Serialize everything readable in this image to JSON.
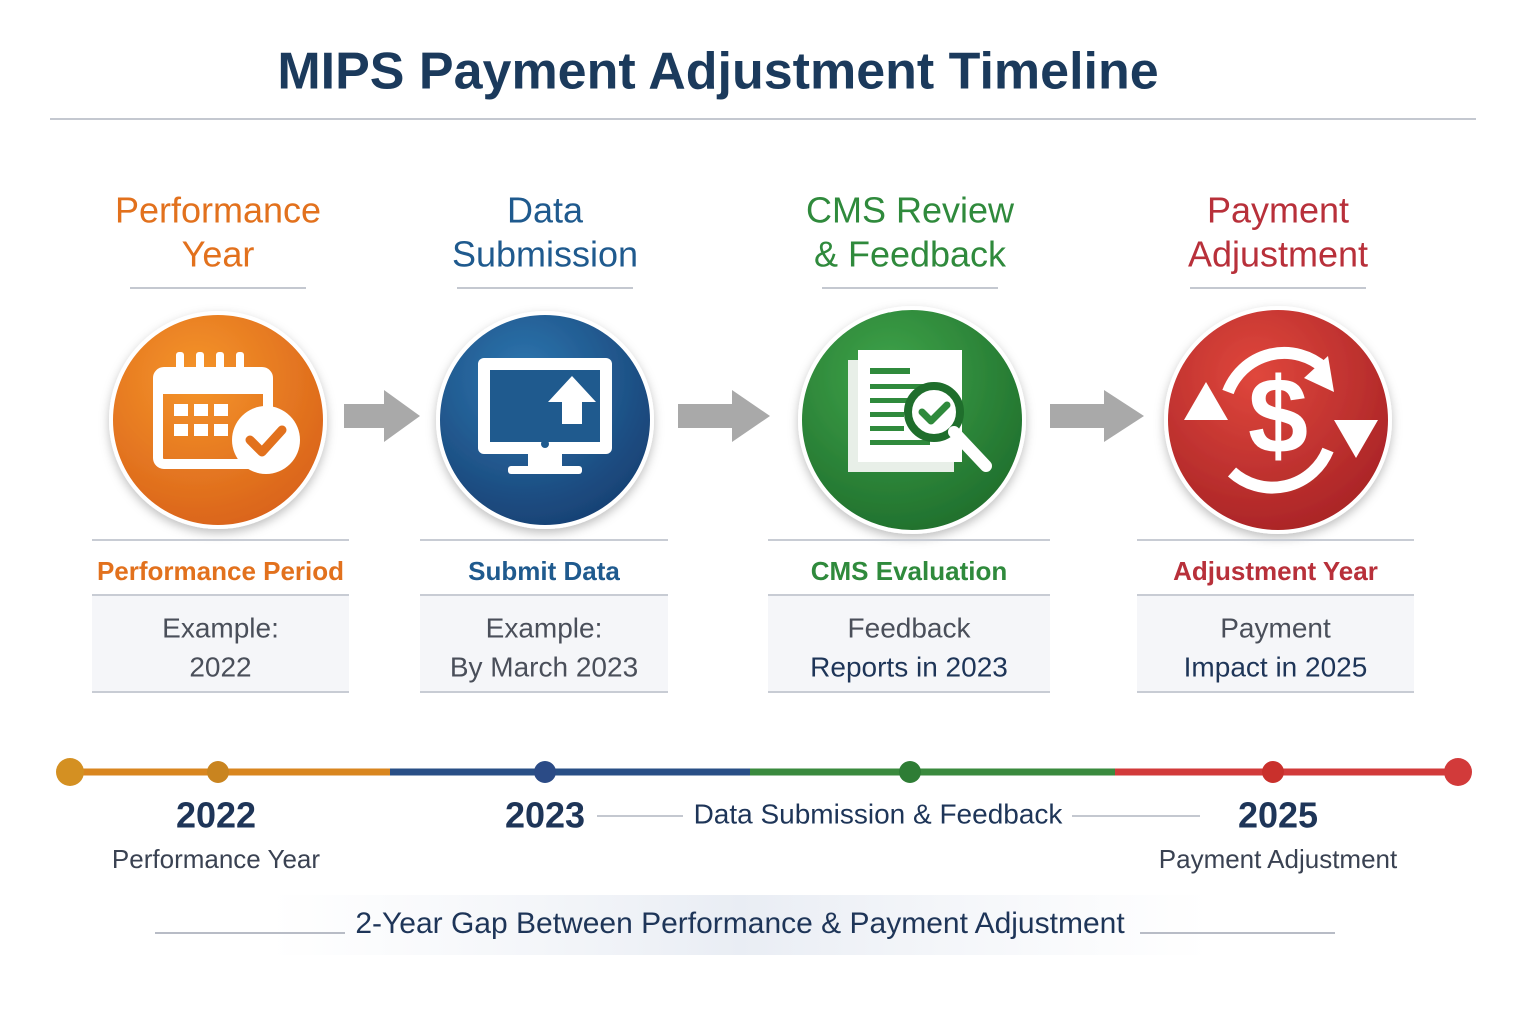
{
  "title": "MIPS Payment Adjustment Timeline",
  "stages": [
    {
      "heading": [
        "Performance",
        "Year"
      ],
      "label": "Performance Period",
      "detail": [
        "Example:",
        "2022"
      ],
      "color": "#e2711d"
    },
    {
      "heading": [
        "Data",
        "Submission"
      ],
      "label": "Submit Data",
      "detail": [
        "Example:",
        "By March 2023"
      ],
      "color": "#1f5a8e"
    },
    {
      "heading": [
        "CMS Review",
        "& Feedback"
      ],
      "label": "CMS Evaluation",
      "detail": [
        "Feedback",
        "Reports in 2023"
      ],
      "color": "#2f8a3c"
    },
    {
      "heading": [
        "Payment",
        "Adjustment"
      ],
      "label": "Adjustment Year",
      "detail": [
        "Payment",
        "Impact in 2025"
      ],
      "color": "#b8303a"
    }
  ],
  "timeline": {
    "markers": [
      {
        "year": "2022",
        "caption": "Performance Year"
      },
      {
        "year": "2023"
      },
      {
        "year": "2025",
        "caption": "Payment Adjustment"
      }
    ],
    "middle_caption": "Data Submission & Feedback"
  },
  "footer": "2-Year Gap Between Performance & Payment Adjustment"
}
